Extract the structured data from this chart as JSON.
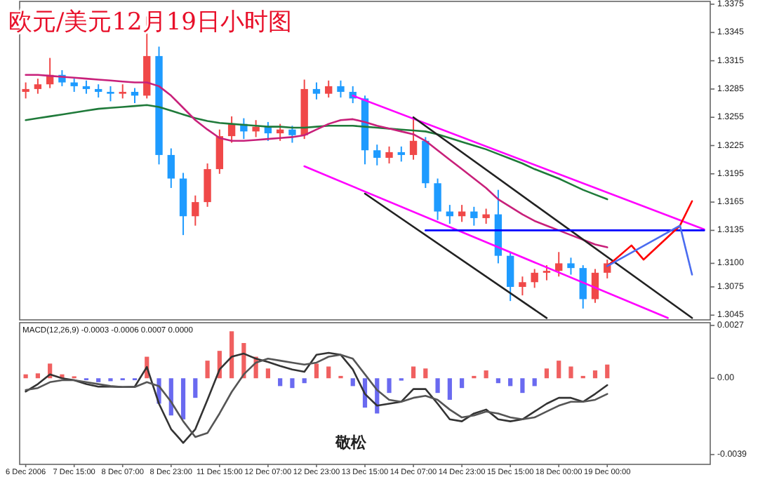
{
  "chart_data": [
    {
      "type": "candlestick",
      "title": "欧元/美元12月19日小时图",
      "tick_labels": "y",
      "categories": [
        null,
        null,
        null,
        null,
        null,
        null,
        null,
        null,
        null,
        null,
        null,
        null,
        null,
        null,
        null,
        null,
        null,
        null,
        null,
        null,
        null,
        null,
        null,
        null,
        null,
        null,
        null,
        null,
        null,
        null,
        null,
        null,
        null,
        null,
        null,
        null,
        null,
        null,
        null,
        null,
        null,
        null,
        null,
        null,
        null,
        null,
        null,
        null,
        null,
        null,
        null,
        null,
        null,
        null,
        null,
        null,
        null
      ],
      "ohlc": [
        [
          1.3282,
          1.3292,
          1.3275,
          1.3285
        ],
        [
          1.3285,
          1.3296,
          1.328,
          1.329
        ],
        [
          1.329,
          1.3318,
          1.3286,
          1.33
        ],
        [
          1.33,
          1.3305,
          1.3288,
          1.3292
        ],
        [
          1.3292,
          1.3296,
          1.3282,
          1.3288
        ],
        [
          1.3288,
          1.3294,
          1.328,
          1.3285
        ],
        [
          1.3285,
          1.329,
          1.3276,
          1.3282
        ],
        [
          1.3282,
          1.3288,
          1.3272,
          1.328
        ],
        [
          1.328,
          1.329,
          1.3275,
          1.3282
        ],
        [
          1.3282,
          1.3286,
          1.327,
          1.3278
        ],
        [
          1.3278,
          1.3362,
          1.3275,
          1.332
        ],
        [
          1.332,
          1.333,
          1.3205,
          1.3215
        ],
        [
          1.3215,
          1.3222,
          1.318,
          1.319
        ],
        [
          1.319,
          1.3196,
          1.313,
          1.315
        ],
        [
          1.315,
          1.3172,
          1.314,
          1.3165
        ],
        [
          1.3165,
          1.3206,
          1.316,
          1.32
        ],
        [
          1.32,
          1.3242,
          1.3195,
          1.3235
        ],
        [
          1.3235,
          1.3256,
          1.3228,
          1.3248
        ],
        [
          1.3248,
          1.3254,
          1.3232,
          1.324
        ],
        [
          1.324,
          1.3252,
          1.3234,
          1.3245
        ],
        [
          1.3245,
          1.325,
          1.323,
          1.3238
        ],
        [
          1.3238,
          1.3248,
          1.323,
          1.3242
        ],
        [
          1.3242,
          1.3246,
          1.3228,
          1.3236
        ],
        [
          1.3236,
          1.3295,
          1.3232,
          1.3285
        ],
        [
          1.3285,
          1.3292,
          1.3274,
          1.328
        ],
        [
          1.328,
          1.3294,
          1.3276,
          1.3288
        ],
        [
          1.3288,
          1.3294,
          1.3276,
          1.3282
        ],
        [
          1.3282,
          1.3288,
          1.327,
          1.3275
        ],
        [
          1.3275,
          1.3278,
          1.3205,
          1.322
        ],
        [
          1.322,
          1.3226,
          1.3204,
          1.3212
        ],
        [
          1.3212,
          1.3224,
          1.3206,
          1.3218
        ],
        [
          1.3218,
          1.3224,
          1.3208,
          1.3215
        ],
        [
          1.3215,
          1.3255,
          1.321,
          1.323
        ],
        [
          1.323,
          1.3234,
          1.318,
          1.3185
        ],
        [
          1.3185,
          1.319,
          1.3146,
          1.3155
        ],
        [
          1.3155,
          1.3162,
          1.3142,
          1.315
        ],
        [
          1.315,
          1.3162,
          1.3144,
          1.3155
        ],
        [
          1.3155,
          1.316,
          1.314,
          1.3148
        ],
        [
          1.3148,
          1.3158,
          1.3142,
          1.3152
        ],
        [
          1.3152,
          1.3178,
          1.31,
          1.3108
        ],
        [
          1.3108,
          1.3112,
          1.306,
          1.3075
        ],
        [
          1.3075,
          1.3086,
          1.3066,
          1.308
        ],
        [
          1.308,
          1.3094,
          1.3074,
          1.309
        ],
        [
          1.309,
          1.3098,
          1.3082,
          1.3092
        ],
        [
          1.3092,
          1.3112,
          1.3086,
          1.31
        ],
        [
          1.31,
          1.3106,
          1.3088,
          1.3095
        ],
        [
          1.3095,
          1.3098,
          1.3052,
          1.3062
        ],
        [
          1.3062,
          1.3094,
          1.3058,
          1.309
        ],
        [
          1.309,
          1.3104,
          1.3084,
          1.31
        ],
        null,
        null,
        null,
        null,
        null,
        null,
        null,
        null
      ],
      "series": [
        {
          "type": "line",
          "color": "#1f7a3a",
          "values": [
            1.3252,
            1.3254,
            1.3256,
            1.3258,
            1.326,
            1.3262,
            1.3264,
            1.3265,
            1.3266,
            1.3267,
            1.3268,
            1.3266,
            1.3262,
            1.3258,
            1.3254,
            1.3251,
            1.3249,
            1.3248,
            1.3247,
            1.3246,
            1.3245,
            1.3245,
            1.3244,
            1.3244,
            1.3245,
            1.3246,
            1.3246,
            1.3246,
            1.3245,
            1.3244,
            1.3243,
            1.3242,
            1.3241,
            1.324,
            1.3237,
            1.3233,
            1.3229,
            1.3225,
            1.3221,
            1.3216,
            1.3211,
            1.3206,
            1.32,
            1.3195,
            1.319,
            1.3184,
            1.3178,
            1.3173,
            1.3168,
            null,
            null,
            null,
            null,
            null,
            null,
            null,
            null
          ]
        },
        {
          "type": "line",
          "color": "#c8207a",
          "values": [
            1.33,
            1.33,
            1.3299,
            1.3298,
            1.3297,
            1.3296,
            1.3295,
            1.3294,
            1.3293,
            1.3292,
            1.3292,
            1.3288,
            1.3278,
            1.3265,
            1.3252,
            1.3242,
            1.3233,
            1.323,
            1.323,
            1.3231,
            1.3232,
            1.3233,
            1.3234,
            1.3236,
            1.3242,
            1.3248,
            1.3252,
            1.3253,
            1.325,
            1.3246,
            1.3243,
            1.324,
            1.3237,
            1.323,
            1.322,
            1.321,
            1.32,
            1.319,
            1.318,
            1.3168,
            1.316,
            1.3152,
            1.3145,
            1.314,
            1.3135,
            1.313,
            1.3125,
            1.312,
            1.3117,
            null,
            null,
            null,
            null,
            null,
            null,
            null,
            null
          ]
        },
        {
          "type": "line",
          "color": "#ff00ff",
          "values": [
            null,
            null,
            null,
            null,
            null,
            null,
            null,
            null,
            null,
            null,
            null,
            null,
            null,
            null,
            null,
            null,
            null,
            null,
            null,
            null,
            null,
            null,
            null,
            null,
            null,
            null,
            null,
            1.3278,
            null,
            null,
            null,
            null,
            null,
            null,
            null,
            null,
            null,
            null,
            null,
            null,
            null,
            null,
            null,
            null,
            null,
            null,
            null,
            null,
            null,
            null,
            null,
            null,
            null,
            null,
            null,
            null,
            1.3136
          ]
        },
        {
          "type": "line",
          "color": "#ff00ff",
          "values": [
            null,
            null,
            null,
            null,
            null,
            null,
            null,
            null,
            null,
            null,
            null,
            null,
            null,
            null,
            null,
            null,
            null,
            null,
            null,
            null,
            null,
            null,
            null,
            1.3203,
            null,
            null,
            null,
            null,
            null,
            null,
            null,
            null,
            null,
            null,
            null,
            null,
            null,
            null,
            null,
            null,
            null,
            null,
            null,
            null,
            null,
            null,
            null,
            null,
            null,
            null,
            null,
            null,
            null,
            1.3042,
            null,
            null,
            null
          ]
        },
        {
          "type": "line",
          "color": "#222222",
          "values": [
            null,
            null,
            null,
            null,
            null,
            null,
            null,
            null,
            null,
            null,
            null,
            null,
            null,
            null,
            null,
            null,
            null,
            null,
            null,
            null,
            null,
            null,
            null,
            null,
            null,
            null,
            null,
            null,
            null,
            null,
            null,
            null,
            1.3255,
            null,
            null,
            null,
            null,
            null,
            null,
            null,
            null,
            null,
            null,
            null,
            null,
            null,
            null,
            null,
            null,
            null,
            null,
            null,
            null,
            null,
            null,
            1.3042,
            null
          ]
        },
        {
          "type": "line",
          "color": "#222222",
          "values": [
            null,
            null,
            null,
            null,
            null,
            null,
            null,
            null,
            null,
            null,
            null,
            null,
            null,
            null,
            null,
            null,
            null,
            null,
            null,
            null,
            null,
            null,
            null,
            null,
            null,
            null,
            null,
            null,
            1.3174,
            null,
            null,
            null,
            null,
            null,
            null,
            null,
            null,
            null,
            null,
            null,
            null,
            null,
            null,
            1.3042,
            null,
            null,
            null,
            null,
            null,
            null,
            null,
            null,
            null,
            null,
            null,
            null,
            null
          ]
        },
        {
          "type": "line",
          "color": "#0000ff",
          "values": [
            null,
            null,
            null,
            null,
            null,
            null,
            null,
            null,
            null,
            null,
            null,
            null,
            null,
            null,
            null,
            null,
            null,
            null,
            null,
            null,
            null,
            null,
            null,
            null,
            null,
            null,
            null,
            null,
            null,
            null,
            null,
            null,
            null,
            1.3135,
            null,
            null,
            null,
            null,
            null,
            null,
            null,
            null,
            null,
            null,
            null,
            null,
            null,
            null,
            null,
            null,
            null,
            null,
            null,
            null,
            null,
            null,
            1.3135
          ]
        },
        {
          "type": "line",
          "color": "#ff0000",
          "values": [
            null,
            null,
            null,
            null,
            null,
            null,
            null,
            null,
            null,
            null,
            null,
            null,
            null,
            null,
            null,
            null,
            null,
            null,
            null,
            null,
            null,
            null,
            null,
            null,
            null,
            null,
            null,
            null,
            null,
            null,
            null,
            null,
            null,
            null,
            null,
            null,
            null,
            null,
            null,
            null,
            null,
            null,
            null,
            null,
            null,
            null,
            null,
            null,
            1.3097,
            null,
            1.3119,
            1.3104,
            null,
            null,
            1.314,
            1.3166,
            null
          ]
        },
        {
          "type": "line",
          "color": "#4a6cf0",
          "values": [
            null,
            null,
            null,
            null,
            null,
            null,
            null,
            null,
            null,
            null,
            null,
            null,
            null,
            null,
            null,
            null,
            null,
            null,
            null,
            null,
            null,
            null,
            null,
            null,
            null,
            null,
            null,
            null,
            null,
            null,
            null,
            null,
            null,
            null,
            null,
            null,
            null,
            null,
            null,
            null,
            null,
            null,
            null,
            null,
            null,
            null,
            null,
            null,
            1.3097,
            null,
            null,
            null,
            null,
            null,
            1.314,
            1.3088,
            null
          ]
        }
      ],
      "ylim": [
        1.304,
        1.3378
      ],
      "yticks": [
        1.3375,
        1.3345,
        1.3315,
        1.3285,
        1.3255,
        1.3225,
        1.3195,
        1.3165,
        1.3135,
        {
          "value": 1.31,
          "label": "1.3100"
        },
        1.3075,
        1.3045
      ]
    },
    {
      "type": "bar",
      "title": "MACD(12,26,9) -0.0003 -0.0006 0.0007 0.0000",
      "annotations": [
        "敬松"
      ],
      "categories": [
        "6 Dec 2006",
        null,
        null,
        null,
        "7 Dec 15:00",
        null,
        null,
        null,
        "8 Dec 07:00",
        null,
        null,
        null,
        "8 Dec 23:00",
        null,
        null,
        null,
        "11 Dec 15:00",
        null,
        null,
        null,
        "12 Dec 07:00",
        null,
        null,
        null,
        "12 Dec 23:00",
        null,
        null,
        null,
        "13 Dec 15:00",
        null,
        null,
        null,
        "14 Dec 07:00",
        null,
        null,
        null,
        "14 Dec 23:00",
        null,
        null,
        null,
        "15 Dec 15:00",
        null,
        null,
        null,
        "18 Dec 00:00",
        null,
        null,
        null,
        "19 Dec 00:00",
        null,
        null,
        null,
        null,
        null,
        null,
        null,
        null
      ],
      "series": [
        {
          "type": "bar",
          "values": [
            0.0002,
            0.00025,
            0.00075,
            0.0002,
            0.0001,
            -0.0001,
            -0.0002,
            -0.00015,
            -0.0001,
            -0.0001,
            0.0011,
            -0.0013,
            -0.0019,
            -0.0021,
            -0.001,
            0.0009,
            0.0014,
            0.0024,
            0.0018,
            0.0011,
            0.0005,
            -0.0004,
            -0.0005,
            -0.00025,
            0.00075,
            0.0006,
            0.00012,
            -0.0004,
            -0.0015,
            -0.0018,
            -0.00075,
            -0.00012,
            0.0006,
            0.0005,
            -0.00075,
            -0.0011,
            -0.0005,
            0.00012,
            0.0004,
            -0.00025,
            -0.0004,
            -0.00075,
            -0.0004,
            0.0005,
            0.0009,
            0.0006,
            0.00012,
            0.0004,
            0.0007,
            null,
            null,
            null,
            null,
            null,
            null,
            null,
            null
          ],
          "colors": [
            "#f06060",
            "#f06060",
            "#f06060",
            "#f06060",
            "#f06060",
            "#6a6af0",
            "#6a6af0",
            "#6a6af0",
            "#6a6af0",
            "#6a6af0",
            "#f06060",
            "#6a6af0",
            "#6a6af0",
            "#6a6af0",
            "#6a6af0",
            "#f06060",
            "#f06060",
            "#f06060",
            "#f06060",
            "#f06060",
            "#f06060",
            "#6a6af0",
            "#6a6af0",
            "#6a6af0",
            "#f06060",
            "#f06060",
            "#f06060",
            "#6a6af0",
            "#6a6af0",
            "#6a6af0",
            "#6a6af0",
            "#6a6af0",
            "#f06060",
            "#f06060",
            "#6a6af0",
            "#6a6af0",
            "#6a6af0",
            "#f06060",
            "#f06060",
            "#6a6af0",
            "#6a6af0",
            "#6a6af0",
            "#6a6af0",
            "#f06060",
            "#f06060",
            "#f06060",
            "#f06060",
            "#f06060",
            "#f06060",
            null,
            null,
            null,
            null,
            null,
            null,
            null,
            null
          ]
        },
        {
          "type": "line",
          "color": "#333333",
          "values": [
            -0.00068,
            -0.0003,
            0.0002,
            0,
            -0.0001,
            -0.0003,
            -0.00043,
            -0.00043,
            -0.00045,
            -0.00043,
            0.00058,
            -0.0013,
            -0.0026,
            -0.0033,
            -0.0026,
            -0.0011,
            0.00045,
            0.0011,
            0.00126,
            0.001,
            0.00083,
            0.00063,
            0.00045,
            0.00033,
            0.0012,
            0.0013,
            0.0012,
            0.00045,
            -0.0008,
            -0.0014,
            -0.0013,
            -0.0012,
            -0.00055,
            -0.00055,
            -0.0013,
            -0.0021,
            -0.0022,
            -0.0018,
            -0.0016,
            -0.0021,
            -0.0022,
            -0.0021,
            -0.0017,
            -0.0013,
            -0.001,
            -0.001,
            -0.0012,
            -0.0008,
            -0.00035,
            null,
            null,
            null,
            null,
            null,
            null,
            null,
            null
          ]
        },
        {
          "type": "line",
          "color": "#555555",
          "values": [
            -0.0006,
            -0.0005,
            -0.0002,
            -0.0001,
            -0.0001,
            -0.0002,
            -0.0003,
            -0.0004,
            -0.00045,
            -0.00045,
            -0.0002,
            -0.0004,
            -0.0012,
            -0.0022,
            -0.003,
            -0.0028,
            -0.0018,
            -0.0007,
            0.0002,
            0.0008,
            0.001,
            0.0009,
            0.0008,
            0.0007,
            0.0008,
            0.0011,
            0.0012,
            0.001,
            0.0002,
            -0.0006,
            -0.0011,
            -0.0012,
            -0.001,
            -0.0009,
            -0.0011,
            -0.0016,
            -0.002,
            -0.0019,
            -0.0017,
            -0.0018,
            -0.002,
            -0.0021,
            -0.002,
            -0.0017,
            -0.0014,
            -0.0012,
            -0.0012,
            -0.0011,
            -0.0008,
            null,
            null,
            null,
            null,
            null,
            null,
            null,
            null
          ]
        }
      ],
      "ylim": [
        -0.0044,
        0.00284
      ],
      "yticks": [
        0.0027,
        {
          "value": 0,
          "label": "0.00"
        },
        -0.0039
      ]
    }
  ]
}
